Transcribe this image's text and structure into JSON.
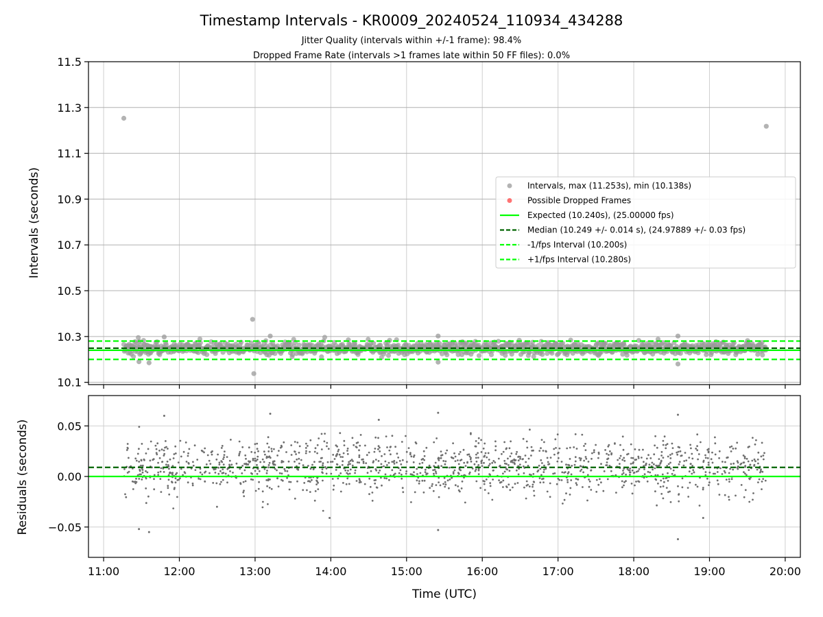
{
  "figure": {
    "title": "Timestamp Intervals - KR0009_20240524_110934_434288",
    "subtitle1": "Jitter Quality (intervals within +/-1 frame): 98.4%",
    "subtitle2": "Dropped Frame Rate (intervals >1 frames late within 50 FF files): 0.0%"
  },
  "chart_data": [
    {
      "type": "scatter",
      "panel": "top",
      "ylabel": "Intervals (seconds)",
      "xlabel": "",
      "xlim": [
        "10:48",
        "20:12"
      ],
      "ylim": [
        10.09,
        11.5
      ],
      "yticks": [
        "10.1",
        "10.3",
        "10.5",
        "10.7",
        "10.9",
        "11.1",
        "11.3",
        "11.5"
      ],
      "grid": true,
      "legend_position": "center-right",
      "time_range": [
        "11:16",
        "19:45"
      ],
      "point_count": 1200,
      "band": {
        "center": 10.249,
        "spread": 0.014,
        "min": 10.2,
        "max": 10.3
      },
      "outliers": [
        {
          "time": "11:16",
          "value": 11.253
        },
        {
          "time": "19:45",
          "value": 11.218
        },
        {
          "time": "12:58",
          "value": 10.375
        },
        {
          "time": "12:59",
          "value": 10.138
        },
        {
          "time": "15:25",
          "value": 10.302
        },
        {
          "time": "13:12",
          "value": 10.302
        },
        {
          "time": "18:35",
          "value": 10.302
        },
        {
          "time": "18:35",
          "value": 10.18
        },
        {
          "time": "11:36",
          "value": 10.185
        },
        {
          "time": "15:25",
          "value": 10.188
        },
        {
          "time": "11:28",
          "value": 10.19
        },
        {
          "time": "11:48",
          "value": 10.298
        }
      ],
      "series": [
        {
          "name": "Intervals, max (11.253s), min (10.138s)",
          "kind": "scatter",
          "color": "#808080"
        },
        {
          "name": "Possible Dropped Frames",
          "kind": "scatter",
          "color": "#ff0000"
        },
        {
          "name": "Expected (10.240s), (25.00000 fps)",
          "kind": "hline",
          "value": 10.24,
          "color": "#00ff00",
          "style": "solid"
        },
        {
          "name": "Median (10.249 +/- 0.014 s), (24.97889 +/- 0.03 fps)",
          "kind": "hline",
          "value": 10.249,
          "color": "#006400",
          "style": "dashed"
        },
        {
          "name": "-1/fps Interval (10.200s)",
          "kind": "hline",
          "value": 10.2,
          "color": "#00ff00",
          "style": "dashed"
        },
        {
          "name": "+1/fps Interval (10.280s)",
          "kind": "hline",
          "value": 10.28,
          "color": "#00ff00",
          "style": "dashed"
        }
      ]
    },
    {
      "type": "scatter",
      "panel": "bottom",
      "ylabel": "Residuals (seconds)",
      "xlabel": "Time (UTC)",
      "xlim": [
        "10:48",
        "20:12"
      ],
      "ylim": [
        -0.08,
        0.08
      ],
      "yticks": [
        "0.05",
        "0.00",
        "−0.05"
      ],
      "xticks": [
        "11:00",
        "12:00",
        "13:00",
        "14:00",
        "15:00",
        "16:00",
        "17:00",
        "18:00",
        "19:00",
        "20:00"
      ],
      "grid": true,
      "time_range": [
        "11:16",
        "19:45"
      ],
      "point_count": 1400,
      "distribution": {
        "center": 0.009,
        "spread": 0.014
      },
      "outliers": [
        {
          "time": "15:25",
          "value": 0.063
        },
        {
          "time": "13:12",
          "value": 0.062
        },
        {
          "time": "18:35",
          "value": 0.061
        },
        {
          "time": "11:48",
          "value": 0.06
        },
        {
          "time": "14:38",
          "value": 0.056
        },
        {
          "time": "11:36",
          "value": -0.055
        },
        {
          "time": "11:28",
          "value": -0.052
        },
        {
          "time": "15:25",
          "value": -0.053
        },
        {
          "time": "18:35",
          "value": -0.062
        },
        {
          "time": "13:59",
          "value": -0.041
        },
        {
          "time": "18:55",
          "value": -0.041
        }
      ],
      "series": [
        {
          "kind": "scatter",
          "color": "#6e6e6e"
        },
        {
          "kind": "hline",
          "value": 0.0,
          "color": "#00ff00",
          "style": "solid"
        },
        {
          "kind": "hline",
          "value": 0.009,
          "color": "#006400",
          "style": "dashed"
        }
      ]
    }
  ]
}
